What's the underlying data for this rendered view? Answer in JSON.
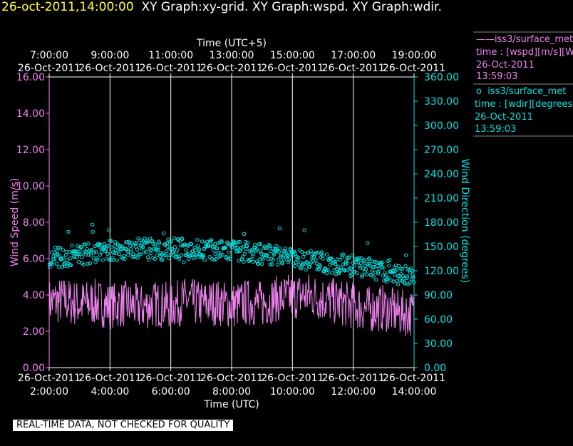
{
  "title": {
    "timestamp": "26-oct-2011,14:00:00",
    "graphs": "XY Graph:xy-grid.  XY Graph:wspd.  XY Graph:wdir."
  },
  "colors": {
    "wspd": "#ee82ee",
    "wdir": "#00e5e5",
    "grid": "#ffffff",
    "text": "#ffffff",
    "title_ts": "#ffff33"
  },
  "legend": {
    "wspd": {
      "marker": "——",
      "source": "iss3/surface_met",
      "var": "time : [wspd][m/s][Wind",
      "date": "26-Oct-2011",
      "time": "13:59:03"
    },
    "wdir": {
      "marker": "o",
      "source": "iss3/surface_met",
      "var": "time : [wdir][degrees][W",
      "date": "26-Oct-2011",
      "time": "13:59:03"
    }
  },
  "qc_note": "REAL-TIME DATA, NOT CHECKED FOR QUALITY",
  "chart_data": {
    "type": "line",
    "top_axis": {
      "label": "Time (UTC+5)",
      "ticks": [
        {
          "time": "7:00:00",
          "date": "26-Oct-2011"
        },
        {
          "time": "9:00:00",
          "date": "26-Oct-2011"
        },
        {
          "time": "11:00:00",
          "date": "26-Oct-2011"
        },
        {
          "time": "13:00:00",
          "date": "26-Oct-2011"
        },
        {
          "time": "15:00:00",
          "date": "26-Oct-2011"
        },
        {
          "time": "17:00:00",
          "date": "26-Oct-2011"
        },
        {
          "time": "19:00:00",
          "date": "26-Oct-2011"
        }
      ]
    },
    "bottom_axis": {
      "label": "Time (UTC)",
      "ticks": [
        {
          "time": "2:00:00",
          "date": "26-Oct-2011"
        },
        {
          "time": "4:00:00",
          "date": "26-Oct-2011"
        },
        {
          "time": "6:00:00",
          "date": "26-Oct-2011"
        },
        {
          "time": "8:00:00",
          "date": "26-Oct-2011"
        },
        {
          "time": "10:00:00",
          "date": "26-Oct-2011"
        },
        {
          "time": "12:00:00",
          "date": "26-Oct-2011"
        },
        {
          "time": "14:00:00",
          "date": "26-Oct-2011"
        }
      ],
      "range": [
        "2011-10-26 02:00:00",
        "2011-10-26 14:00:00"
      ]
    },
    "left_axis": {
      "label": "Wind Speed (m/s)",
      "ylim": [
        0,
        16
      ],
      "ticks": [
        "0.00",
        "2.00",
        "4.00",
        "6.00",
        "8.00",
        "10.00",
        "12.00",
        "14.00",
        "16.00"
      ]
    },
    "right_axis": {
      "label": "Wind Direction (degrees)",
      "ylim": [
        0,
        360
      ],
      "ticks": [
        "0.00",
        "30.00",
        "60.00",
        "90.00",
        "120.00",
        "150.00",
        "180.00",
        "210.00",
        "240.00",
        "270.00",
        "300.00",
        "330.00",
        "360.00"
      ]
    },
    "grid": "vertical",
    "series": [
      {
        "name": "wspd",
        "axis": "left",
        "style": "line",
        "x": [
          "02:00",
          "02:30",
          "03:00",
          "03:30",
          "04:00",
          "04:30",
          "05:00",
          "05:30",
          "06:00",
          "06:30",
          "07:00",
          "07:30",
          "08:00",
          "08:30",
          "09:00",
          "09:30",
          "10:00",
          "10:30",
          "11:00",
          "11:30",
          "12:00",
          "12:30",
          "13:00",
          "13:30",
          "14:00"
        ],
        "values": [
          3.6,
          3.7,
          3.5,
          3.6,
          3.4,
          3.5,
          3.3,
          3.5,
          3.4,
          3.7,
          3.5,
          3.6,
          3.4,
          3.6,
          3.5,
          3.8,
          3.9,
          4.0,
          3.8,
          3.6,
          3.4,
          3.2,
          3.3,
          3.0,
          3.0
        ]
      },
      {
        "name": "wdir",
        "axis": "right",
        "style": "scatter",
        "x": [
          "02:00",
          "02:30",
          "03:00",
          "03:30",
          "04:00",
          "04:30",
          "05:00",
          "05:30",
          "06:00",
          "06:30",
          "07:00",
          "07:30",
          "08:00",
          "08:30",
          "09:00",
          "09:30",
          "10:00",
          "10:30",
          "11:00",
          "11:30",
          "12:00",
          "12:30",
          "13:00",
          "13:30",
          "14:00"
        ],
        "values": [
          136,
          138,
          140,
          142,
          145,
          146,
          148,
          145,
          148,
          147,
          146,
          145,
          144,
          143,
          141,
          140,
          135,
          133,
          130,
          128,
          126,
          123,
          120,
          117,
          114
        ]
      }
    ]
  }
}
